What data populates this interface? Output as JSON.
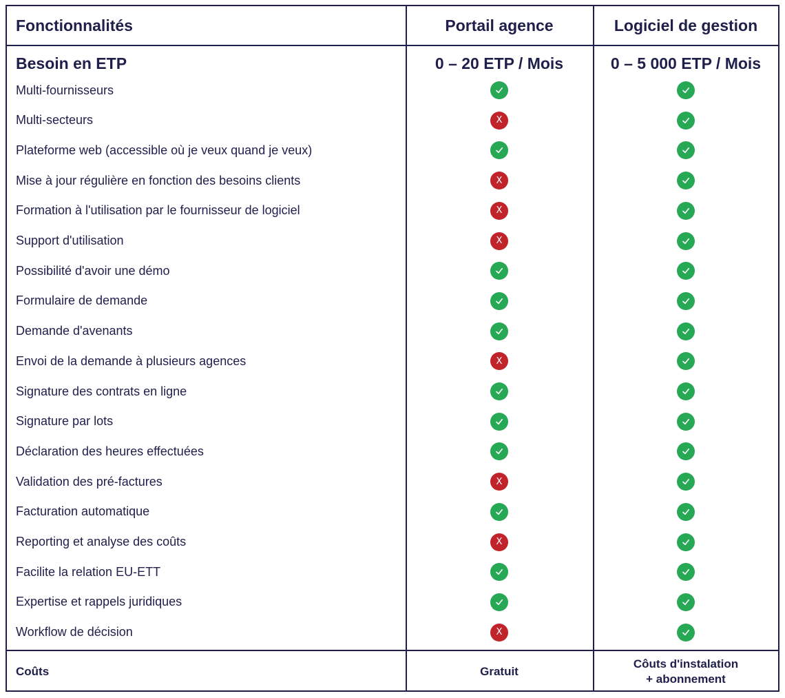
{
  "header": {
    "col1": "Fonctionnalités",
    "col2": "Portail agence",
    "col3": "Logiciel de gestion"
  },
  "etp": {
    "label": "Besoin en ETP",
    "portail": "0 – 20 ETP / Mois",
    "logiciel": "0 – 5 000 ETP / Mois"
  },
  "rows": [
    {
      "label": "Multi-fournisseurs",
      "portail": "yes",
      "logiciel": "yes"
    },
    {
      "label": "Multi-secteurs",
      "portail": "no",
      "logiciel": "yes"
    },
    {
      "label": "Plateforme web (accessible où je veux quand je veux)",
      "portail": "yes",
      "logiciel": "yes"
    },
    {
      "label": "Mise à jour régulière en fonction des besoins clients",
      "portail": "no",
      "logiciel": "yes"
    },
    {
      "label": "Formation à l'utilisation par le fournisseur de logiciel",
      "portail": "no",
      "logiciel": "yes"
    },
    {
      "label": "Support d'utilisation",
      "portail": "no",
      "logiciel": "yes"
    },
    {
      "label": "Possibilité d'avoir une démo",
      "portail": "yes",
      "logiciel": "yes"
    },
    {
      "label": "Formulaire de demande",
      "portail": "yes",
      "logiciel": "yes"
    },
    {
      "label": "Demande d'avenants",
      "portail": "yes",
      "logiciel": "yes"
    },
    {
      "label": "Envoi de la demande à plusieurs agences",
      "portail": "no",
      "logiciel": "yes"
    },
    {
      "label": "Signature des contrats en ligne",
      "portail": "yes",
      "logiciel": "yes"
    },
    {
      "label": "Signature par lots",
      "portail": "yes",
      "logiciel": "yes"
    },
    {
      "label": "Déclaration des heures effectuées",
      "portail": "yes",
      "logiciel": "yes"
    },
    {
      "label": "Validation des pré-factures",
      "portail": "no",
      "logiciel": "yes"
    },
    {
      "label": "Facturation automatique",
      "portail": "yes",
      "logiciel": "yes"
    },
    {
      "label": "Reporting et analyse des coûts",
      "portail": "no",
      "logiciel": "yes"
    },
    {
      "label": "Facilite la relation EU-ETT",
      "portail": "yes",
      "logiciel": "yes"
    },
    {
      "label": "Expertise et rappels juridiques",
      "portail": "yes",
      "logiciel": "yes"
    },
    {
      "label": "Workflow de décision",
      "portail": "no",
      "logiciel": "yes"
    }
  ],
  "footer": {
    "label": "Coûts",
    "portail": "Gratuit",
    "logiciel_line1": "Côuts d'instalation",
    "logiciel_line2": "+ abonnement"
  },
  "icons": {
    "yes": "check-circle-icon",
    "no": "x-circle-icon",
    "no_glyph": "X"
  },
  "colors": {
    "text": "#1e1f4b",
    "border": "#1e1f4b",
    "yes": "#27a855",
    "no": "#c1232a"
  }
}
